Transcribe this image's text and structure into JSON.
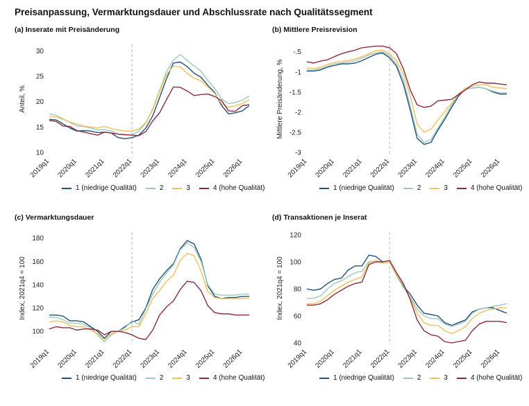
{
  "title": "Preisanpassung, Vermarktungsdauer und Abschlussrate nach Qualitätssegment",
  "legend": [
    {
      "label": "1 (niedrige Qualität)",
      "color": "#1f4e79"
    },
    {
      "label": "2",
      "color": "#9ec7c2"
    },
    {
      "label": "3",
      "color": "#f0c15a"
    },
    {
      "label": "4 (hohe Qualität)",
      "color": "#8b2a3e"
    }
  ],
  "chart_data": [
    {
      "type": "line",
      "title": "(a) Inserate mit Preisänderung",
      "ylabel": "Anteil, %",
      "ylim": [
        10,
        31
      ],
      "yticks": [
        10,
        15,
        20,
        25,
        30
      ],
      "ytick_labels": [
        "10",
        "15",
        "20",
        "25",
        "30"
      ],
      "xticks": [
        "2019q1",
        "2020q1",
        "2021q1",
        "2022q1",
        "2023q1",
        "2024q1",
        "2025q1",
        "2026q1"
      ],
      "reference_line": "2022q1",
      "series": [
        {
          "name": "1 (niedrige Qualität)",
          "values": [
            16.5,
            16.4,
            15.6,
            14.8,
            14.2,
            14.3,
            14.2,
            13.9,
            14.0,
            13.8,
            12.9,
            12.7,
            12.9,
            13.4,
            14.8,
            17.2,
            20.8,
            24.5,
            27.6,
            27.8,
            26.9,
            25.6,
            24.8,
            23.2,
            21.8,
            19.2,
            17.6,
            17.8,
            18.2,
            19.2
          ]
        },
        {
          "name": "2",
          "values": [
            17.6,
            17.3,
            16.6,
            15.9,
            15.2,
            15.1,
            14.8,
            14.4,
            14.5,
            14.2,
            13.6,
            13.4,
            13.5,
            14.2,
            15.8,
            18.6,
            22.2,
            25.9,
            28.2,
            29.3,
            28.1,
            27.0,
            26.0,
            24.2,
            22.6,
            20.5,
            19.6,
            19.8,
            20.3,
            21.1
          ]
        },
        {
          "name": "3",
          "values": [
            17.1,
            17.0,
            16.5,
            16.0,
            15.6,
            15.2,
            15.0,
            14.8,
            15.1,
            14.7,
            14.4,
            14.2,
            14.2,
            14.6,
            15.9,
            18.4,
            22.0,
            25.3,
            27.0,
            26.8,
            25.6,
            24.6,
            24.1,
            22.9,
            21.6,
            19.6,
            18.9,
            19.2,
            19.6,
            20.4
          ]
        },
        {
          "name": "4 (hohe Qualität)",
          "values": [
            16.3,
            16.1,
            15.2,
            15.1,
            14.3,
            14.0,
            13.7,
            13.4,
            14.0,
            13.8,
            13.6,
            13.5,
            13.4,
            13.3,
            14.1,
            16.2,
            17.8,
            20.4,
            22.9,
            22.8,
            22.1,
            21.2,
            21.4,
            21.5,
            21.0,
            20.2,
            18.2,
            18.1,
            19.2,
            19.4
          ]
        }
      ]
    },
    {
      "type": "line",
      "title": "(b) Mittlere Preisrevision",
      "ylabel": "Mittlere Preisänderung, %",
      "ylim": [
        -3,
        -0.35
      ],
      "yticks": [
        -3,
        -2.5,
        -2,
        -1.5,
        -1,
        -0.5
      ],
      "ytick_labels": [
        "-3",
        "-2.5",
        "-2",
        "-1.5",
        "-1",
        "-.5"
      ],
      "xticks": [
        "2019q1",
        "2020q1",
        "2021q1",
        "2022q1",
        "2023q1",
        "2024q1",
        "2025q1",
        "2026q1"
      ],
      "reference_line": "2022q1",
      "series": [
        {
          "name": "1 (niedrige Qualität)",
          "values": [
            -0.98,
            -0.98,
            -0.95,
            -0.88,
            -0.84,
            -0.8,
            -0.8,
            -0.78,
            -0.72,
            -0.64,
            -0.56,
            -0.53,
            -0.65,
            -0.86,
            -1.3,
            -1.95,
            -2.65,
            -2.8,
            -2.75,
            -2.45,
            -2.18,
            -1.88,
            -1.6,
            -1.42,
            -1.4,
            -1.38,
            -1.42,
            -1.5,
            -1.55,
            -1.55
          ]
        },
        {
          "name": "2",
          "values": [
            -0.95,
            -0.96,
            -0.92,
            -0.86,
            -0.8,
            -0.78,
            -0.76,
            -0.72,
            -0.66,
            -0.58,
            -0.52,
            -0.5,
            -0.6,
            -0.8,
            -1.2,
            -1.85,
            -2.55,
            -2.75,
            -2.68,
            -2.4,
            -2.12,
            -1.82,
            -1.56,
            -1.42,
            -1.4,
            -1.38,
            -1.42,
            -1.48,
            -1.52,
            -1.52
          ]
        },
        {
          "name": "3",
          "values": [
            -0.9,
            -0.92,
            -0.88,
            -0.82,
            -0.76,
            -0.74,
            -0.72,
            -0.68,
            -0.62,
            -0.55,
            -0.47,
            -0.46,
            -0.55,
            -0.72,
            -1.05,
            -1.6,
            -2.3,
            -2.5,
            -2.42,
            -2.2,
            -1.98,
            -1.78,
            -1.55,
            -1.4,
            -1.35,
            -1.32,
            -1.32,
            -1.38,
            -1.4,
            -1.42
          ]
        },
        {
          "name": "4 (hohe Qualität)",
          "values": [
            -0.75,
            -0.78,
            -0.73,
            -0.7,
            -0.62,
            -0.55,
            -0.5,
            -0.46,
            -0.4,
            -0.38,
            -0.36,
            -0.36,
            -0.4,
            -0.55,
            -0.92,
            -1.45,
            -1.82,
            -1.88,
            -1.85,
            -1.72,
            -1.7,
            -1.68,
            -1.56,
            -1.45,
            -1.32,
            -1.25,
            -1.28,
            -1.28,
            -1.3,
            -1.32
          ]
        }
      ]
    },
    {
      "type": "line",
      "title": "(c) Vermarktungsdauer",
      "ylabel": "Index, 2021q4 = 100",
      "ylim": [
        90,
        184
      ],
      "yticks": [
        100,
        120,
        140,
        160,
        180
      ],
      "ytick_labels": [
        "100",
        "120",
        "140",
        "160",
        "180"
      ],
      "xticks": [
        "2019q1",
        "2020q1",
        "2021q1",
        "2022q1",
        "2023q1",
        "2024q1",
        "2025q1",
        "2026q1"
      ],
      "reference_line": "2022q1",
      "series": [
        {
          "name": "1 (niedrige Qualität)",
          "values": [
            114,
            114,
            113,
            109,
            109,
            108,
            104,
            100,
            94,
            100,
            100,
            104,
            108,
            110,
            120,
            136,
            145,
            152,
            158,
            171,
            178,
            175,
            162,
            139,
            130,
            128,
            129,
            129,
            130,
            130
          ]
        },
        {
          "name": "2",
          "values": [
            112,
            112,
            110,
            107,
            107,
            106,
            103,
            97,
            91,
            97,
            100,
            103,
            109,
            106,
            119,
            132,
            142,
            150,
            157,
            170,
            176,
            172,
            160,
            140,
            132,
            131,
            131,
            131,
            132,
            132
          ]
        },
        {
          "name": "3",
          "values": [
            108,
            109,
            108,
            105,
            104,
            104,
            101,
            98,
            93,
            98,
            100,
            101,
            104,
            104,
            115,
            128,
            135,
            143,
            148,
            161,
            167,
            165,
            152,
            134,
            129,
            128,
            128,
            128,
            128,
            128
          ]
        },
        {
          "name": "4 (hohe Qualität)",
          "values": [
            102,
            104,
            103,
            103,
            101,
            102,
            102,
            101,
            97,
            100,
            100,
            99,
            97,
            94,
            93,
            101,
            114,
            121,
            126,
            136,
            143,
            142,
            135,
            122,
            116,
            115,
            115,
            114,
            114,
            114
          ]
        }
      ]
    },
    {
      "type": "line",
      "title": "(d) Transaktionen je Inserat",
      "ylabel": "Index, 2021q4 = 100",
      "ylim": [
        40,
        121
      ],
      "yticks": [
        40,
        60,
        80,
        100,
        120
      ],
      "ytick_labels": [
        "40",
        "60",
        "80",
        "100",
        "120"
      ],
      "xticks": [
        "2019q1",
        "2020q1",
        "2021q1",
        "2022q1",
        "2023q1",
        "2024q1",
        "2025q1",
        "2026q1"
      ],
      "reference_line": "2022q1",
      "series": [
        {
          "name": "1 (niedrige Qualität)",
          "values": [
            80,
            79,
            80,
            84,
            87,
            88,
            94,
            97,
            97,
            105,
            104,
            100,
            101,
            91,
            82,
            76,
            68,
            62,
            61,
            60,
            55,
            53,
            55,
            57,
            63,
            65,
            66,
            66,
            64,
            62
          ]
        },
        {
          "name": "2",
          "values": [
            73,
            73,
            75,
            80,
            84,
            86,
            89,
            92,
            93,
            100,
            101,
            99,
            100,
            90,
            81,
            74,
            65,
            60,
            58,
            58,
            54,
            52,
            54,
            56,
            62,
            65,
            66,
            67,
            68,
            69
          ]
        },
        {
          "name": "3",
          "values": [
            69,
            69,
            71,
            75,
            79,
            82,
            85,
            87,
            89,
            99,
            101,
            99,
            100,
            91,
            83,
            73,
            62,
            55,
            53,
            53,
            49,
            47,
            49,
            52,
            58,
            62,
            64,
            65,
            66,
            66
          ]
        },
        {
          "name": "4 (hohe Qualität)",
          "values": [
            68,
            68,
            69,
            72,
            76,
            79,
            82,
            84,
            85,
            98,
            100,
            100,
            101,
            92,
            84,
            72,
            57,
            49,
            46,
            45,
            41,
            40,
            41,
            42,
            49,
            54,
            56,
            56,
            56,
            55
          ]
        }
      ]
    }
  ]
}
